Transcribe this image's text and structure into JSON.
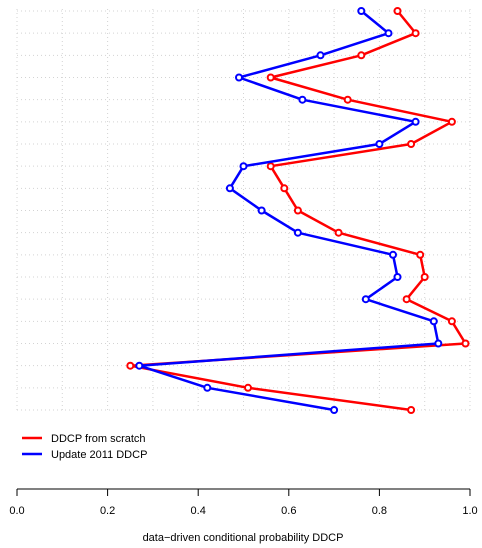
{
  "chart_data": {
    "type": "line",
    "orientation": "horizontal-profile",
    "xlabel": "data−driven conditional probability DDCP",
    "xlim": [
      0.0,
      1.0
    ],
    "x_ticks": [
      "0.0",
      "0.2",
      "0.4",
      "0.6",
      "0.8",
      "1.0"
    ],
    "grid": true,
    "legend_position": "bottom-left",
    "series": [
      {
        "name": "DDCP from scratch",
        "color": "#ff0000",
        "values": [
          0.84,
          0.88,
          0.76,
          0.56,
          0.73,
          0.96,
          0.87,
          0.56,
          0.59,
          0.62,
          0.71,
          0.89,
          0.9,
          0.86,
          0.96,
          0.99,
          0.25,
          0.51,
          0.87
        ]
      },
      {
        "name": "Update 2011 DDCP",
        "color": "#0000ff",
        "values": [
          0.76,
          0.82,
          0.67,
          0.49,
          0.63,
          0.88,
          0.8,
          0.5,
          0.47,
          0.54,
          0.62,
          0.83,
          0.84,
          0.77,
          0.92,
          0.93,
          0.27,
          0.42,
          0.7
        ]
      }
    ]
  }
}
